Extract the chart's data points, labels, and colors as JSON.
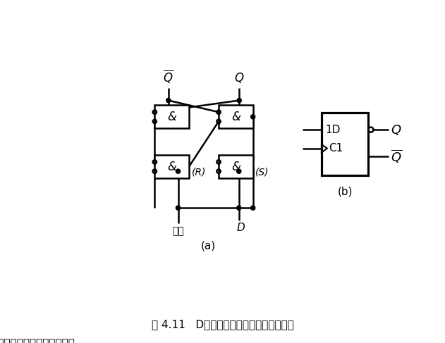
{
  "bg_color": "#ffffff",
  "line_color": "#000000",
  "title": "图 4.11   D触发器的逻辑电路图和逻辑符号",
  "label_a": "(a)",
  "label_b": "(b)",
  "figsize": [
    6.31,
    4.87
  ],
  "dpi": 100
}
